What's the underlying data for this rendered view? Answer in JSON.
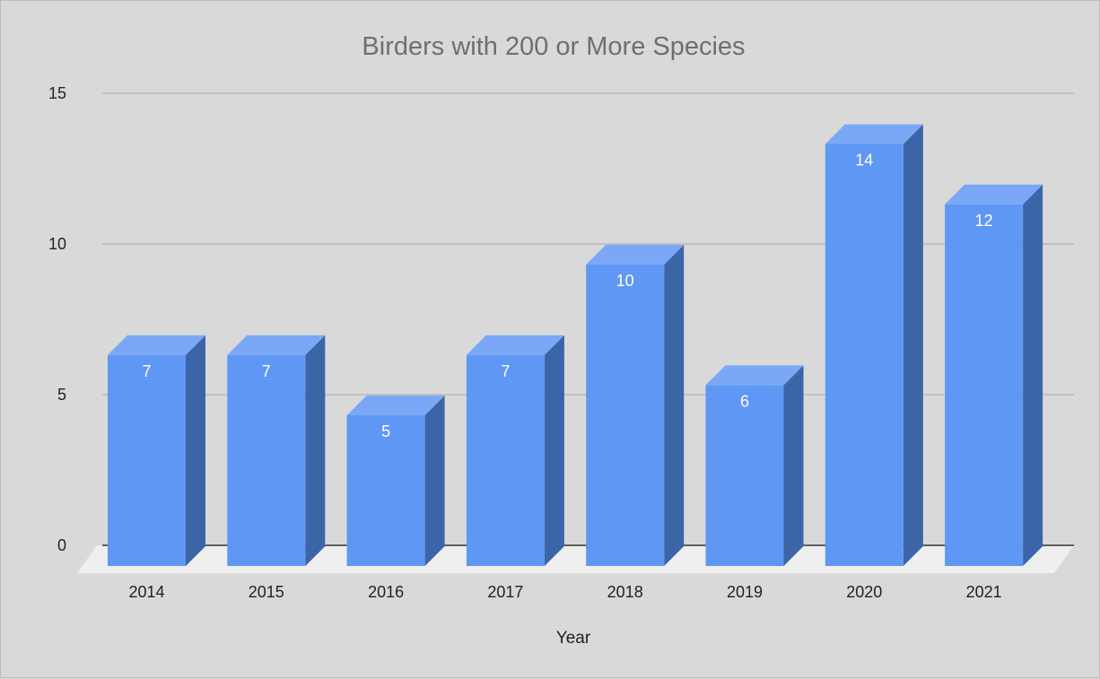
{
  "chart_data": {
    "type": "bar",
    "title": "Birders with 200 or More Species",
    "xlabel": "Year",
    "ylabel": "",
    "categories": [
      "2014",
      "2015",
      "2016",
      "2017",
      "2018",
      "2019",
      "2020",
      "2021"
    ],
    "values": [
      7,
      7,
      5,
      7,
      10,
      6,
      14,
      12
    ],
    "data_labels": [
      "7",
      "7",
      "5",
      "7",
      "10",
      "6",
      "14",
      "12"
    ],
    "ylim": [
      0,
      15
    ],
    "yticks": [
      "0",
      "5",
      "10",
      "15"
    ],
    "grid": true,
    "legend": "none",
    "style": "3d-columns",
    "colors": {
      "background": "#d9d9d9",
      "bar_front": "#5f97f5",
      "bar_top": "#7aa8f7",
      "bar_side": "#3b65a7",
      "floor": "#efefef",
      "gridline": "#a9a9a9",
      "baseline": "#333333",
      "title": "#6f6f6f",
      "text": "#222222",
      "data_label": "#ffffff"
    }
  }
}
